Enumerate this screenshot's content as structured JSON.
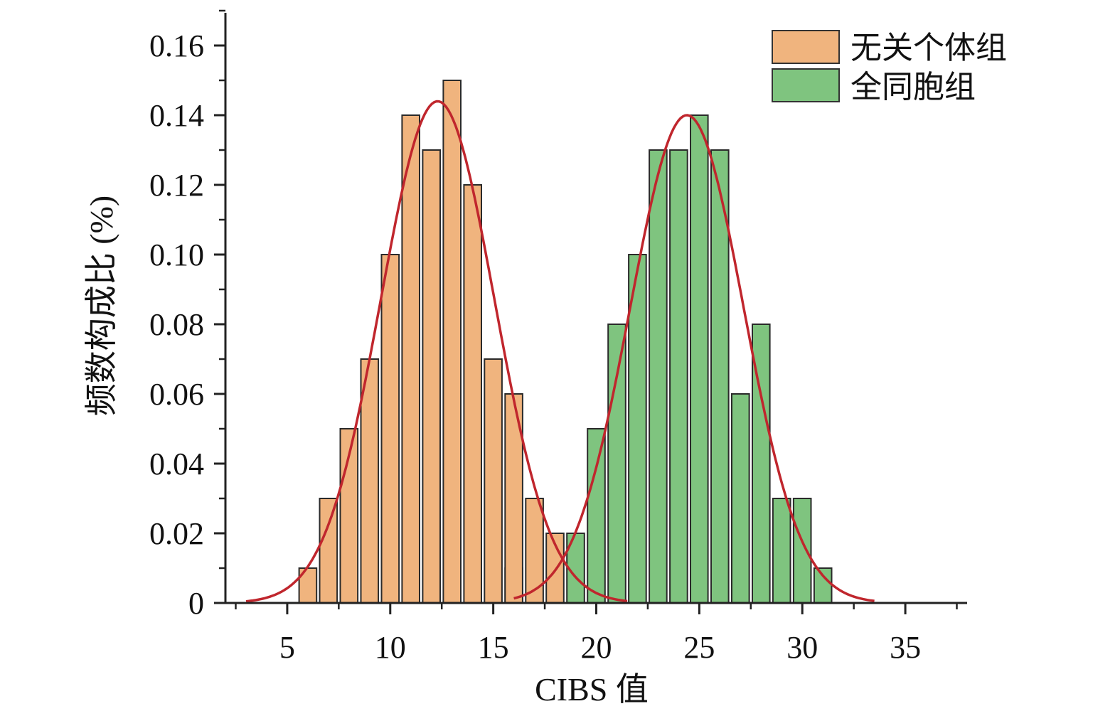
{
  "chart_data": {
    "type": "bar",
    "xlabel": "CIBS 值",
    "ylabel": "频数构成比 (%)",
    "xlim": [
      2,
      38
    ],
    "ylim": [
      0,
      0.17
    ],
    "x_ticks": [
      5,
      10,
      15,
      20,
      25,
      30,
      35
    ],
    "y_ticks": [
      0,
      0.02,
      0.04,
      0.06,
      0.08,
      0.1,
      0.12,
      0.14,
      0.16
    ],
    "y_tick_labels": [
      "0",
      "0.02",
      "0.04",
      "0.06",
      "0.08",
      "0.10",
      "0.12",
      "0.14",
      "0.16"
    ],
    "legend_position": "top-right",
    "bar_width": 0.85,
    "series": [
      {
        "name": "无关个体组",
        "color": "#f0b47e",
        "x": [
          6,
          7,
          8,
          9,
          10,
          11,
          12,
          13,
          14,
          15,
          16,
          17,
          18
        ],
        "values": [
          0.01,
          0.03,
          0.05,
          0.07,
          0.1,
          0.14,
          0.13,
          0.15,
          0.12,
          0.07,
          0.06,
          0.03,
          0.02
        ]
      },
      {
        "name": "全同胞组",
        "color": "#7fc47f",
        "x": [
          16,
          19,
          20,
          21,
          22,
          23,
          24,
          25,
          26,
          27,
          28,
          29,
          30,
          31
        ],
        "values": [
          0.01,
          0.02,
          0.05,
          0.08,
          0.1,
          0.13,
          0.13,
          0.14,
          0.13,
          0.06,
          0.08,
          0.03,
          0.03,
          0.01
        ]
      }
    ],
    "fit_curves": [
      {
        "series": "无关个体组",
        "color": "#c0262d",
        "mean": 12.3,
        "peak": 0.144,
        "sd": 2.75,
        "x_range": [
          3,
          21.5
        ]
      },
      {
        "series": "全同胞组",
        "color": "#c0262d",
        "mean": 24.4,
        "peak": 0.14,
        "sd": 2.75,
        "x_range": [
          16,
          33.5
        ]
      }
    ]
  }
}
